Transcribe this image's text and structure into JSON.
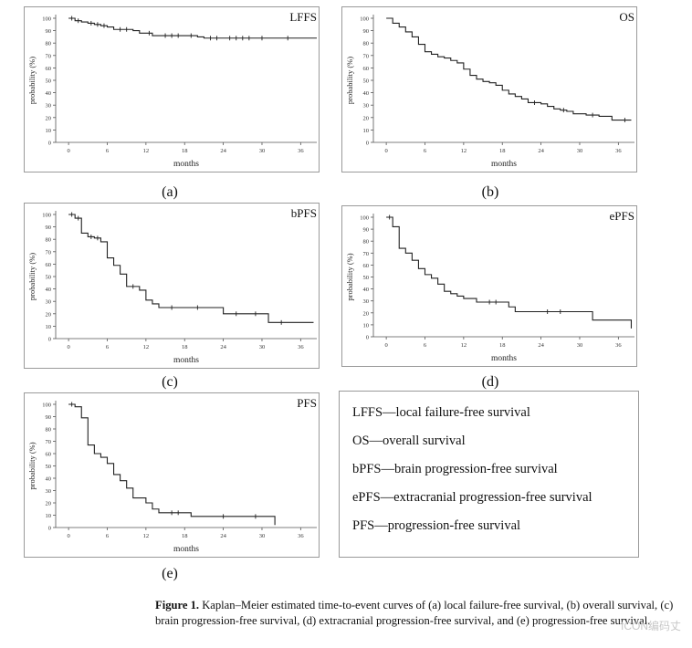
{
  "chart_data": [
    {
      "type": "line",
      "id": "a",
      "title": "LFFS",
      "xlabel": "months",
      "ylabel": "probability (%)",
      "xticks": [
        0,
        6,
        12,
        18,
        24,
        30,
        36
      ],
      "yticks": [
        0,
        10,
        20,
        30,
        40,
        50,
        60,
        70,
        80,
        90,
        100
      ],
      "xlim": [
        -2,
        38.5
      ],
      "ylim": [
        0,
        100
      ],
      "grid": false,
      "steps": [
        [
          0,
          100
        ],
        [
          1,
          98
        ],
        [
          2,
          97
        ],
        [
          3,
          96
        ],
        [
          4,
          95
        ],
        [
          5,
          94
        ],
        [
          6,
          93
        ],
        [
          7,
          91
        ],
        [
          10,
          90
        ],
        [
          11,
          88
        ],
        [
          13,
          86
        ],
        [
          14,
          86
        ],
        [
          20,
          85
        ],
        [
          21,
          84
        ],
        [
          38.5,
          84
        ]
      ],
      "censors": [
        [
          0.5,
          100
        ],
        [
          1.5,
          98
        ],
        [
          3.5,
          96
        ],
        [
          4.5,
          95
        ],
        [
          5.5,
          94
        ],
        [
          8,
          91
        ],
        [
          9,
          91
        ],
        [
          12.5,
          88
        ],
        [
          15,
          86
        ],
        [
          16,
          86
        ],
        [
          17,
          86
        ],
        [
          19,
          86
        ],
        [
          22,
          84
        ],
        [
          23,
          84
        ],
        [
          25,
          84
        ],
        [
          26,
          84
        ],
        [
          27,
          84
        ],
        [
          28,
          84
        ],
        [
          30,
          84
        ],
        [
          34,
          84
        ]
      ]
    },
    {
      "type": "line",
      "id": "b",
      "title": "OS",
      "xlabel": "months",
      "ylabel": "probability (%)",
      "xticks": [
        0,
        6,
        12,
        18,
        24,
        30,
        36
      ],
      "yticks": [
        0,
        10,
        20,
        30,
        40,
        50,
        60,
        70,
        80,
        90,
        100
      ],
      "xlim": [
        -2,
        38.5
      ],
      "ylim": [
        0,
        100
      ],
      "grid": false,
      "steps": [
        [
          0,
          100
        ],
        [
          1,
          96
        ],
        [
          2,
          93
        ],
        [
          3,
          89
        ],
        [
          4,
          85
        ],
        [
          5,
          79
        ],
        [
          6,
          73
        ],
        [
          7,
          71
        ],
        [
          8,
          69
        ],
        [
          9,
          68
        ],
        [
          10,
          66
        ],
        [
          11,
          64
        ],
        [
          12,
          59
        ],
        [
          13,
          54
        ],
        [
          14,
          51
        ],
        [
          15,
          49
        ],
        [
          16,
          48
        ],
        [
          17,
          46
        ],
        [
          18,
          42
        ],
        [
          19,
          39
        ],
        [
          20,
          37
        ],
        [
          21,
          35
        ],
        [
          22,
          32
        ],
        [
          24,
          31
        ],
        [
          25,
          29
        ],
        [
          26,
          27
        ],
        [
          27,
          26
        ],
        [
          28,
          25
        ],
        [
          29,
          23
        ],
        [
          31,
          22
        ],
        [
          33,
          21
        ],
        [
          35,
          18
        ],
        [
          38,
          18
        ]
      ],
      "censors": [
        [
          23,
          32
        ],
        [
          27.5,
          26
        ],
        [
          32,
          22
        ],
        [
          37,
          18
        ]
      ]
    },
    {
      "type": "line",
      "id": "c",
      "title": "bPFS",
      "xlabel": "months",
      "ylabel": "probability (%)",
      "xticks": [
        0,
        6,
        12,
        18,
        24,
        30,
        36
      ],
      "yticks": [
        0,
        10,
        20,
        30,
        40,
        50,
        60,
        70,
        80,
        90,
        100
      ],
      "xlim": [
        -2,
        38.5
      ],
      "ylim": [
        0,
        100
      ],
      "grid": false,
      "steps": [
        [
          0,
          100
        ],
        [
          1,
          97
        ],
        [
          2,
          85
        ],
        [
          3,
          82
        ],
        [
          4,
          81
        ],
        [
          5,
          78
        ],
        [
          6,
          65
        ],
        [
          7,
          59
        ],
        [
          8,
          52
        ],
        [
          9,
          42
        ],
        [
          11,
          39
        ],
        [
          12,
          31
        ],
        [
          13,
          28
        ],
        [
          14,
          25
        ],
        [
          24,
          20
        ],
        [
          31,
          13
        ],
        [
          38,
          13
        ]
      ],
      "censors": [
        [
          0.5,
          100
        ],
        [
          1.5,
          97
        ],
        [
          3.5,
          82
        ],
        [
          4.5,
          81
        ],
        [
          10,
          42
        ],
        [
          16,
          25
        ],
        [
          20,
          25
        ],
        [
          26,
          20
        ],
        [
          29,
          20
        ],
        [
          33,
          13
        ]
      ]
    },
    {
      "type": "line",
      "id": "d",
      "title": "ePFS",
      "xlabel": "months",
      "ylabel": "probability (%)",
      "xticks": [
        0,
        6,
        12,
        18,
        24,
        30,
        36
      ],
      "yticks": [
        0,
        10,
        20,
        30,
        40,
        50,
        60,
        70,
        80,
        90,
        100
      ],
      "xlim": [
        -2,
        38.5
      ],
      "ylim": [
        0,
        100
      ],
      "grid": false,
      "steps": [
        [
          0,
          100
        ],
        [
          1,
          92
        ],
        [
          2,
          74
        ],
        [
          3,
          70
        ],
        [
          4,
          64
        ],
        [
          5,
          57
        ],
        [
          6,
          52
        ],
        [
          7,
          49
        ],
        [
          8,
          44
        ],
        [
          9,
          38
        ],
        [
          10,
          36
        ],
        [
          11,
          34
        ],
        [
          12,
          32
        ],
        [
          14,
          29
        ],
        [
          19,
          25
        ],
        [
          20,
          21
        ],
        [
          32,
          14
        ],
        [
          38,
          14
        ],
        [
          38,
          7
        ]
      ],
      "censors": [
        [
          0.5,
          100
        ],
        [
          16,
          29
        ],
        [
          17,
          29
        ],
        [
          25,
          21
        ],
        [
          27,
          21
        ]
      ]
    },
    {
      "type": "line",
      "id": "e",
      "title": "PFS",
      "xlabel": "months",
      "ylabel": "probability (%)",
      "xticks": [
        0,
        6,
        12,
        18,
        24,
        30,
        36
      ],
      "yticks": [
        0,
        10,
        20,
        30,
        40,
        50,
        60,
        70,
        80,
        90,
        100
      ],
      "xlim": [
        -2,
        38.5
      ],
      "ylim": [
        0,
        100
      ],
      "grid": false,
      "steps": [
        [
          0,
          100
        ],
        [
          1,
          98
        ],
        [
          2,
          89
        ],
        [
          3,
          67
        ],
        [
          4,
          60
        ],
        [
          5,
          57
        ],
        [
          6,
          52
        ],
        [
          7,
          43
        ],
        [
          8,
          38
        ],
        [
          9,
          32
        ],
        [
          10,
          24
        ],
        [
          12,
          20
        ],
        [
          13,
          15
        ],
        [
          14,
          12
        ],
        [
          19,
          9
        ],
        [
          32,
          9
        ],
        [
          32,
          2
        ]
      ],
      "censors": [
        [
          0.5,
          100
        ],
        [
          16,
          12
        ],
        [
          17,
          12
        ],
        [
          24,
          9
        ],
        [
          29,
          9
        ]
      ]
    }
  ],
  "panel_labels": [
    "(a)",
    "(b)",
    "(c)",
    "(d)",
    "(e)"
  ],
  "legend": [
    "LFFS—local failure-free survival",
    "OS—overall survival",
    "bPFS—brain progression-free survival",
    "ePFS—extracranial progression-free survival",
    "PFS—progression-free survival"
  ],
  "caption": {
    "label": "Figure 1.",
    "text": "Kaplan–Meier estimated time-to-event curves of (a) local failure-free survival, (b) overall survival, (c) brain progression-free survival, (d) extracranial progression-free survival, and (e) progression-free survival."
  },
  "watermark": "ICON编码丈",
  "colors": {
    "line": "#222222",
    "axis": "#555555",
    "frame": "#9a9a9a"
  }
}
